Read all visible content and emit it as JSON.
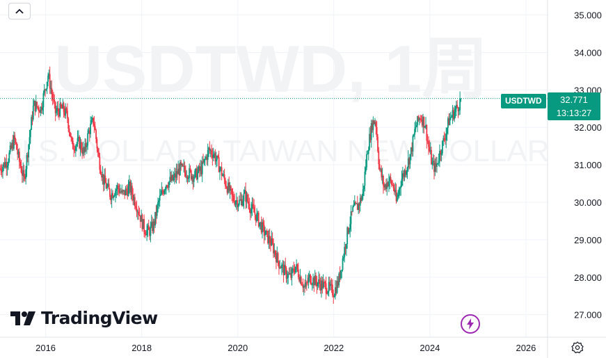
{
  "watermark": {
    "title": "USDTWD, 1周",
    "subtitle": "U.S. DOLLAR / TAIWAN NEW DOLLAR"
  },
  "branding": {
    "name": "TradingView"
  },
  "last_price": {
    "symbol": "USDTWD",
    "value": "32.771",
    "countdown": "13:13:27",
    "color": "#089981"
  },
  "colors": {
    "up": "#089981",
    "down": "#f23645",
    "grid": "#f0f3fa",
    "axis_text": "#131722"
  },
  "icons": {
    "collapse": "chevron-up-icon",
    "bolt": "lightning-bolt-icon",
    "settings": "gear-icon"
  },
  "chart_data": {
    "type": "candlestick",
    "interval": "1W",
    "y_ticks": [
      "35.000",
      "34.000",
      "33.000",
      "32.000",
      "31.000",
      "30.000",
      "29.000",
      "28.000",
      "27.000"
    ],
    "x_ticks": [
      "2016",
      "2018",
      "2020",
      "2022",
      "2024",
      "2026"
    ],
    "ylim": [
      26.4,
      35.4
    ],
    "xlim": [
      2015.05,
      2026.45
    ],
    "grid": true,
    "last_value": 32.771,
    "series_trend": [
      [
        2015.05,
        30.9
      ],
      [
        2015.2,
        31.1
      ],
      [
        2015.35,
        31.7
      ],
      [
        2015.45,
        31.1
      ],
      [
        2015.55,
        30.6
      ],
      [
        2015.65,
        31.6
      ],
      [
        2015.75,
        32.6
      ],
      [
        2015.9,
        32.5
      ],
      [
        2016.05,
        33.4
      ],
      [
        2016.1,
        33.1
      ],
      [
        2016.2,
        32.4
      ],
      [
        2016.35,
        32.5
      ],
      [
        2016.45,
        32.3
      ],
      [
        2016.55,
        31.5
      ],
      [
        2016.7,
        31.6
      ],
      [
        2016.8,
        31.3
      ],
      [
        2016.9,
        31.9
      ],
      [
        2017.0,
        32.2
      ],
      [
        2017.1,
        31.2
      ],
      [
        2017.2,
        30.6
      ],
      [
        2017.35,
        30.2
      ],
      [
        2017.5,
        30.4
      ],
      [
        2017.6,
        30.2
      ],
      [
        2017.75,
        30.4
      ],
      [
        2017.9,
        29.9
      ],
      [
        2018.05,
        29.3
      ],
      [
        2018.15,
        29.2
      ],
      [
        2018.25,
        29.4
      ],
      [
        2018.35,
        30.0
      ],
      [
        2018.5,
        30.5
      ],
      [
        2018.65,
        30.6
      ],
      [
        2018.8,
        30.9
      ],
      [
        2018.95,
        30.8
      ],
      [
        2019.1,
        30.7
      ],
      [
        2019.25,
        30.9
      ],
      [
        2019.4,
        31.4
      ],
      [
        2019.5,
        31.3
      ],
      [
        2019.6,
        31.0
      ],
      [
        2019.75,
        30.5
      ],
      [
        2019.9,
        30.1
      ],
      [
        2020.05,
        30.0
      ],
      [
        2020.15,
        30.2
      ],
      [
        2020.25,
        29.9
      ],
      [
        2020.4,
        29.6
      ],
      [
        2020.55,
        29.2
      ],
      [
        2020.7,
        28.9
      ],
      [
        2020.85,
        28.4
      ],
      [
        2021.0,
        28.1
      ],
      [
        2021.1,
        28.0
      ],
      [
        2021.2,
        28.3
      ],
      [
        2021.3,
        28.0
      ],
      [
        2021.4,
        27.7
      ],
      [
        2021.5,
        28.0
      ],
      [
        2021.6,
        27.9
      ],
      [
        2021.75,
        27.8
      ],
      [
        2021.9,
        27.7
      ],
      [
        2022.0,
        27.6
      ],
      [
        2022.1,
        27.9
      ],
      [
        2022.2,
        28.6
      ],
      [
        2022.3,
        29.3
      ],
      [
        2022.4,
        29.8
      ],
      [
        2022.5,
        29.9
      ],
      [
        2022.6,
        30.2
      ],
      [
        2022.7,
        31.4
      ],
      [
        2022.8,
        32.1
      ],
      [
        2022.87,
        32.2
      ],
      [
        2022.95,
        30.9
      ],
      [
        2023.05,
        30.4
      ],
      [
        2023.15,
        30.6
      ],
      [
        2023.25,
        30.4
      ],
      [
        2023.3,
        30.0
      ],
      [
        2023.4,
        30.6
      ],
      [
        2023.5,
        30.9
      ],
      [
        2023.6,
        31.3
      ],
      [
        2023.7,
        32.0
      ],
      [
        2023.8,
        32.3
      ],
      [
        2023.9,
        32.1
      ],
      [
        2023.97,
        31.5
      ],
      [
        2024.05,
        31.0
      ],
      [
        2024.12,
        30.9
      ],
      [
        2024.2,
        31.3
      ],
      [
        2024.3,
        31.7
      ],
      [
        2024.4,
        32.2
      ],
      [
        2024.5,
        32.4
      ],
      [
        2024.6,
        32.6
      ],
      [
        2024.65,
        32.771
      ]
    ]
  }
}
